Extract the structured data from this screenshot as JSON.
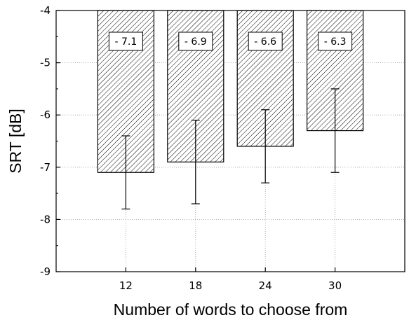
{
  "chart_data": {
    "type": "bar",
    "title": "",
    "xlabel": "Number of words to choose from",
    "ylabel": "SRT  [dB]",
    "categories": [
      "12",
      "18",
      "24",
      "30"
    ],
    "values": [
      -7.1,
      -6.9,
      -6.6,
      -6.3
    ],
    "data_labels": [
      "- 7.1",
      "- 6.9",
      "- 6.6",
      "- 6.3"
    ],
    "error_low": [
      -7.8,
      -7.7,
      -7.3,
      -7.1
    ],
    "error_high": [
      -6.4,
      -6.1,
      -5.9,
      -5.5
    ],
    "ylim": [
      -9,
      -4
    ],
    "yticks": [
      -9,
      -8,
      -7,
      -6,
      -5,
      -4
    ],
    "ytick_labels": [
      "-9",
      "-8",
      "-7",
      "-6",
      "-5",
      "-4"
    ],
    "bar_fill": "hatched",
    "bar_color": "#000000",
    "grid": true,
    "legend": "none"
  }
}
